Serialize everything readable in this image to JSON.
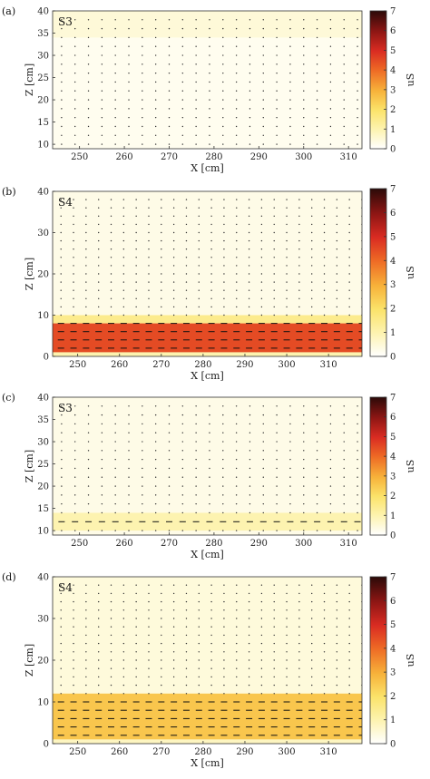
{
  "chart_data": [
    {
      "type": "heatmap",
      "panel": "(a)",
      "scenario": "S3",
      "xlabel": "X [cm]",
      "ylabel": "Z [cm]",
      "xlim": [
        244,
        313
      ],
      "ylim": [
        9,
        40
      ],
      "xticks": [
        250,
        260,
        270,
        280,
        290,
        300,
        310
      ],
      "yticks": [
        10,
        15,
        20,
        25,
        30,
        35,
        40
      ],
      "colorbar": {
        "min": 0,
        "max": 7,
        "ticks": [
          0,
          1,
          2,
          3,
          4,
          5,
          6,
          7
        ],
        "label": "uS"
      },
      "bands": [
        {
          "zmin": 9,
          "zmax": 40,
          "value": 0.2
        },
        {
          "zmin": 34,
          "zmax": 40,
          "value": 0.5
        }
      ],
      "vector_rows": [
        10,
        12,
        14,
        16,
        18,
        20,
        22,
        24,
        26,
        28,
        30,
        32,
        34,
        36,
        38
      ],
      "vector_x_start": 246,
      "vector_x_step": 3,
      "vector_len": [
        0,
        0,
        0,
        0,
        0,
        0,
        0,
        0,
        0,
        0,
        0,
        0,
        0,
        0,
        0
      ]
    },
    {
      "type": "heatmap",
      "panel": "(b)",
      "scenario": "S4",
      "xlabel": "X [cm]",
      "ylabel": "Z [cm]",
      "xlim": [
        244,
        318
      ],
      "ylim": [
        0,
        40
      ],
      "xticks": [
        250,
        260,
        270,
        280,
        290,
        300,
        310
      ],
      "yticks": [
        0,
        10,
        20,
        30,
        40
      ],
      "colorbar": {
        "min": 0,
        "max": 7,
        "ticks": [
          0,
          1,
          2,
          3,
          4,
          5,
          6,
          7
        ],
        "label": "uS"
      },
      "bands": [
        {
          "zmin": 0,
          "zmax": 40,
          "value": 0.3
        },
        {
          "zmin": 8,
          "zmax": 10,
          "value": 1.5
        },
        {
          "zmin": 1,
          "zmax": 8,
          "value": 4.5
        },
        {
          "zmin": 0,
          "zmax": 1,
          "value": 1.0
        }
      ],
      "vector_rows": [
        2,
        4,
        6,
        8,
        10,
        12,
        14,
        16,
        18,
        20,
        22,
        24,
        26,
        28,
        30,
        32,
        34,
        36,
        38
      ],
      "vector_x_start": 246,
      "vector_x_step": 3,
      "vector_len": [
        1,
        1,
        1,
        1,
        0,
        0,
        0,
        0,
        0,
        0,
        0,
        0,
        0,
        0,
        0,
        0,
        0,
        0,
        0
      ]
    },
    {
      "type": "heatmap",
      "panel": "(c)",
      "scenario": "S3",
      "xlabel": "X [cm]",
      "ylabel": "Z [cm]",
      "xlim": [
        244,
        313
      ],
      "ylim": [
        9,
        40
      ],
      "xticks": [
        250,
        260,
        270,
        280,
        290,
        300,
        310
      ],
      "yticks": [
        10,
        15,
        20,
        25,
        30,
        35,
        40
      ],
      "colorbar": {
        "min": 0,
        "max": 7,
        "ticks": [
          0,
          1,
          2,
          3,
          4,
          5,
          6,
          7
        ],
        "label": "uS"
      },
      "bands": [
        {
          "zmin": 9,
          "zmax": 40,
          "value": 0.3
        },
        {
          "zmin": 10,
          "zmax": 14,
          "value": 1.0
        }
      ],
      "vector_rows": [
        10,
        12,
        14,
        16,
        18,
        20,
        22,
        24,
        26,
        28,
        30,
        32,
        34,
        36,
        38
      ],
      "vector_x_start": 246,
      "vector_x_step": 3,
      "vector_len": [
        0,
        1,
        0,
        0,
        0,
        0,
        0,
        0,
        0,
        0,
        0,
        0,
        0,
        0,
        0
      ]
    },
    {
      "type": "heatmap",
      "panel": "(d)",
      "scenario": "S4",
      "xlabel": "X [cm]",
      "ylabel": "Z [cm]",
      "xlim": [
        244,
        318
      ],
      "ylim": [
        0,
        40
      ],
      "xticks": [
        250,
        260,
        270,
        280,
        290,
        300,
        310
      ],
      "yticks": [
        0,
        10,
        20,
        30,
        40
      ],
      "colorbar": {
        "min": 0,
        "max": 7,
        "ticks": [
          0,
          1,
          2,
          3,
          4,
          5,
          6,
          7
        ],
        "label": "uS"
      },
      "bands": [
        {
          "zmin": 0,
          "zmax": 40,
          "value": 0.45
        },
        {
          "zmin": 1,
          "zmax": 12,
          "value": 2.6
        },
        {
          "zmin": 0,
          "zmax": 1,
          "value": 0.8
        }
      ],
      "vector_rows": [
        2,
        4,
        6,
        8,
        10,
        12,
        14,
        16,
        18,
        20,
        22,
        24,
        26,
        28,
        30,
        32,
        34,
        36,
        38
      ],
      "vector_x_start": 246,
      "vector_x_step": 3,
      "vector_len": [
        1,
        1,
        1,
        1,
        1,
        0,
        0,
        0,
        0,
        0,
        0,
        0,
        0,
        0,
        0,
        0,
        0,
        0,
        0
      ]
    }
  ]
}
